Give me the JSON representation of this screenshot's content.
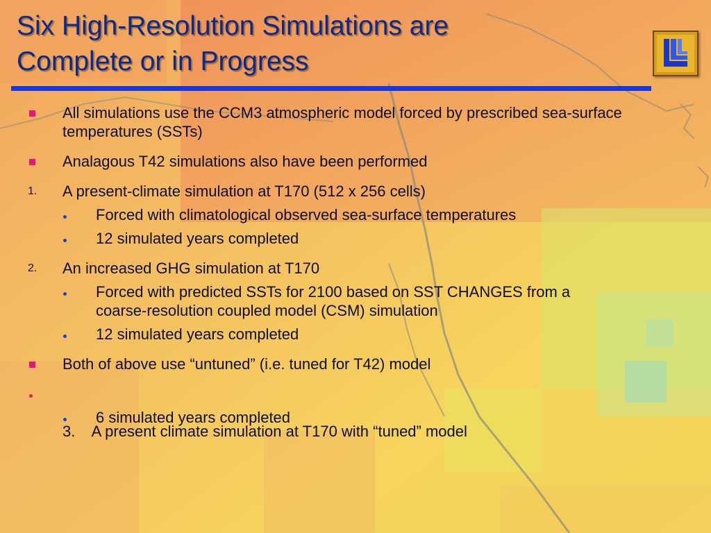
{
  "slide": {
    "title_lines": [
      "Six High-Resolution Simulations are",
      "Complete or in Progress"
    ],
    "logo": {
      "icon": "llnl-logo-icon"
    },
    "colors": {
      "title": "#0b2a8c",
      "rule": "#1737e0",
      "square_bullet": "#e2167c",
      "sub_bullet": "#1840d8"
    },
    "items": [
      {
        "marker": "square",
        "text": "All simulations use the CCM3 atmospheric model forced by prescribed sea-surface temperatures (SSTs)"
      },
      {
        "marker": "square",
        "text": "Analagous T42 simulations also have been performed"
      },
      {
        "marker": "1.",
        "text": "A present-climate simulation at T170 (512 x 256 cells)"
      },
      {
        "marker": "•",
        "text": "Forced with climatological observed sea-surface temperatures"
      },
      {
        "marker": "•",
        "text": "12 simulated years completed"
      },
      {
        "marker": "2.",
        "text": "An increased GHG simulation at T170"
      },
      {
        "marker": "•",
        "text": "Forced with predicted SSTs for 2100 based on SST CHANGES from a coarse-resolution coupled model (CSM) simulation"
      },
      {
        "marker": "•",
        "text": "12 simulated years completed"
      },
      {
        "marker": "square",
        "text": "Both of above use “untuned” (i.e. tuned for T42) model"
      },
      {
        "marker": "•",
        "text": "3.    A present climate simulation at T170 with “tuned” model"
      },
      {
        "marker": "•",
        "text": "6 simulated years completed"
      }
    ]
  }
}
